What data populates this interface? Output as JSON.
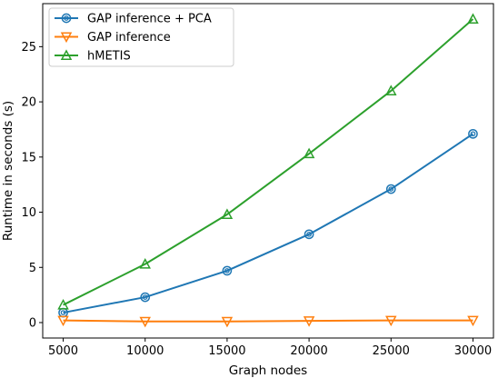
{
  "chart_data": {
    "type": "line",
    "xlabel": "Graph nodes",
    "ylabel": "Runtime in seconds (s)",
    "xlim": [
      3750,
      31250
    ],
    "ylim": [
      -1.4,
      28.9
    ],
    "x": [
      5000,
      10000,
      15000,
      20000,
      25000,
      30000
    ],
    "x_ticks": [
      5000,
      10000,
      15000,
      20000,
      25000,
      30000
    ],
    "x_tick_labels": [
      "5000",
      "10000",
      "15000",
      "20000",
      "25000",
      "30000"
    ],
    "y_ticks": [
      0,
      5,
      10,
      15,
      20,
      25
    ],
    "y_tick_labels": [
      "0",
      "5",
      "10",
      "15",
      "20",
      "25"
    ],
    "grid": false,
    "legend_position": "top-left",
    "series": [
      {
        "name": "GAP inference + PCA",
        "values": [
          0.9,
          2.3,
          4.7,
          8.0,
          12.1,
          17.1
        ],
        "color": "#1f77b4",
        "marker": "circle"
      },
      {
        "name": "GAP inference",
        "values": [
          0.2,
          0.1,
          0.1,
          0.15,
          0.2,
          0.2
        ],
        "color": "#ff7f0e",
        "marker": "triangle-down"
      },
      {
        "name": "hMETIS",
        "values": [
          1.6,
          5.3,
          9.8,
          15.3,
          21.0,
          27.5
        ],
        "color": "#2ca02c",
        "marker": "triangle-up"
      }
    ]
  }
}
